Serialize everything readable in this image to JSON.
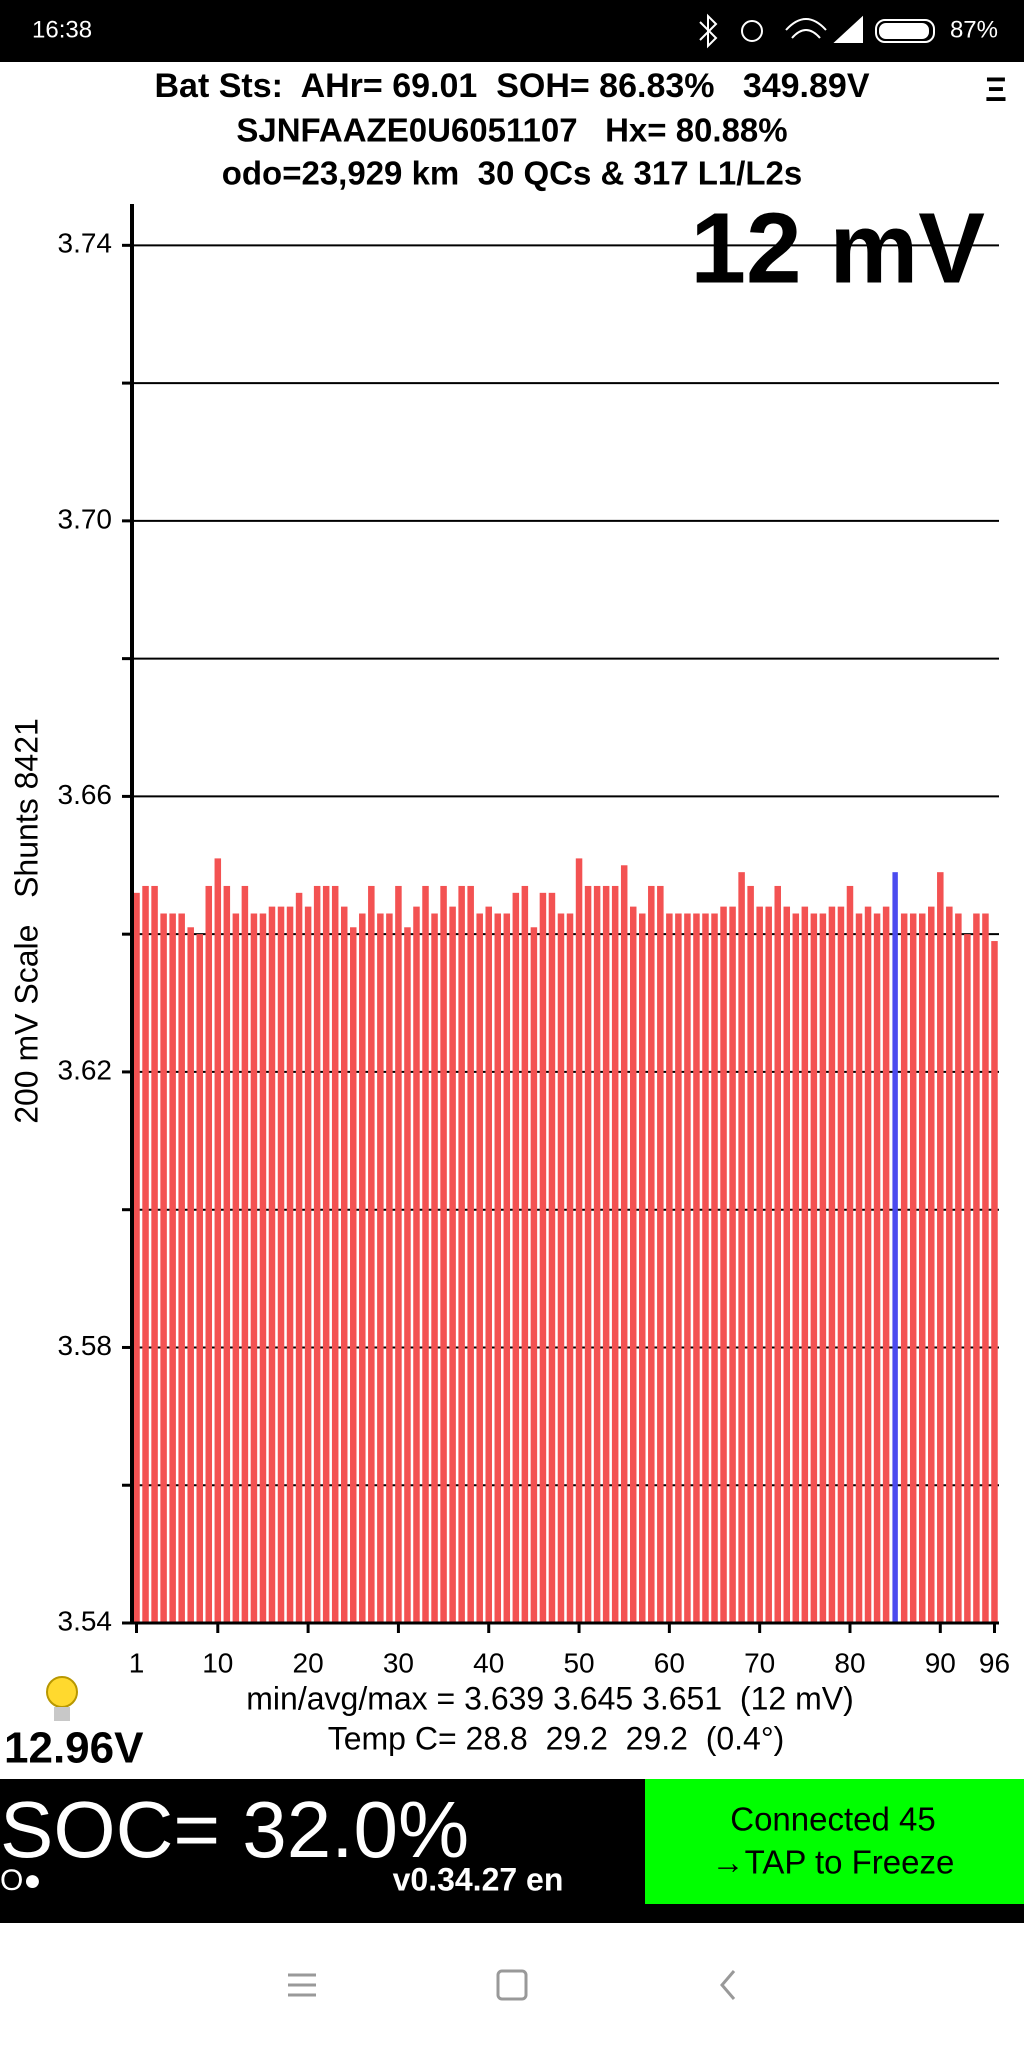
{
  "status_bar": {
    "time": "16:38",
    "battery": "87%"
  },
  "header": {
    "line1": "Bat Sts:  AHr= 69.01  SOH= 86.83%   349.89V",
    "line2": "SJNFAAZE0U6051107   Hx= 80.88%",
    "line3": "odo=23,929 km  30 QCs & 317 L1/L2s",
    "menu": "Ξ"
  },
  "chart_data": {
    "type": "bar",
    "annotation": "12 mV",
    "y_label": "200 mV Scale   Shunts 8421",
    "x": [
      1,
      2,
      3,
      4,
      5,
      6,
      7,
      8,
      9,
      10,
      11,
      12,
      13,
      14,
      15,
      16,
      17,
      18,
      19,
      20,
      21,
      22,
      23,
      24,
      25,
      26,
      27,
      28,
      29,
      30,
      31,
      32,
      33,
      34,
      35,
      36,
      37,
      38,
      39,
      40,
      41,
      42,
      43,
      44,
      45,
      46,
      47,
      48,
      49,
      50,
      51,
      52,
      53,
      54,
      55,
      56,
      57,
      58,
      59,
      60,
      61,
      62,
      63,
      64,
      65,
      66,
      67,
      68,
      69,
      70,
      71,
      72,
      73,
      74,
      75,
      76,
      77,
      78,
      79,
      80,
      81,
      82,
      83,
      84,
      85,
      86,
      87,
      88,
      89,
      90,
      91,
      92,
      93,
      94,
      95,
      96
    ],
    "series": [
      {
        "values": [
          3.646,
          3.647,
          3.647,
          3.643,
          3.643,
          3.643,
          3.641,
          3.64,
          3.647,
          3.651,
          3.647,
          3.643,
          3.647,
          3.643,
          3.643,
          3.644,
          3.644,
          3.644,
          3.646,
          3.644,
          3.647,
          3.647,
          3.647,
          3.644,
          3.641,
          3.643,
          3.647,
          3.643,
          3.643,
          3.647,
          3.641,
          3.644,
          3.647,
          3.643,
          3.647,
          3.644,
          3.647,
          3.647,
          3.643,
          3.644,
          3.643,
          3.643,
          3.646,
          3.647,
          3.641,
          3.646,
          3.646,
          3.643,
          3.643,
          3.651,
          3.647,
          3.647,
          3.647,
          3.647,
          3.65,
          3.644,
          3.643,
          3.647,
          3.647,
          3.643,
          3.643,
          3.643,
          3.643,
          3.643,
          3.643,
          3.644,
          3.644,
          3.649,
          3.647,
          3.644,
          3.644,
          3.647,
          3.644,
          3.643,
          3.644,
          3.643,
          3.643,
          3.644,
          3.644,
          3.647,
          3.643,
          3.644,
          3.643,
          3.644,
          3.649,
          3.643,
          3.643,
          3.643,
          3.644,
          3.649,
          3.644,
          3.643,
          3.64,
          3.643,
          3.643,
          3.639
        ],
        "colors": [
          "#f35252",
          "#f35252",
          "#f35252",
          "#f35252",
          "#f35252",
          "#f35252",
          "#f35252",
          "#f35252",
          "#f35252",
          "#f35252",
          "#f35252",
          "#f35252",
          "#f35252",
          "#f35252",
          "#f35252",
          "#f35252",
          "#f35252",
          "#f35252",
          "#f35252",
          "#f35252",
          "#f35252",
          "#f35252",
          "#f35252",
          "#f35252",
          "#f35252",
          "#f35252",
          "#f35252",
          "#f35252",
          "#f35252",
          "#f35252",
          "#f35252",
          "#f35252",
          "#f35252",
          "#f35252",
          "#f35252",
          "#f35252",
          "#f35252",
          "#f35252",
          "#f35252",
          "#f35252",
          "#f35252",
          "#f35252",
          "#f35252",
          "#f35252",
          "#f35252",
          "#f35252",
          "#f35252",
          "#f35252",
          "#f35252",
          "#f35252",
          "#f35252",
          "#f35252",
          "#f35252",
          "#f35252",
          "#f35252",
          "#f35252",
          "#f35252",
          "#f35252",
          "#f35252",
          "#f35252",
          "#f35252",
          "#f35252",
          "#f35252",
          "#f35252",
          "#f35252",
          "#f35252",
          "#f35252",
          "#f35252",
          "#f35252",
          "#f35252",
          "#f35252",
          "#f35252",
          "#f35252",
          "#f35252",
          "#f35252",
          "#f35252",
          "#f35252",
          "#f35252",
          "#f35252",
          "#f35252",
          "#f35252",
          "#f35252",
          "#f35252",
          "#f35252",
          "#4b4bef",
          "#f35252",
          "#f35252",
          "#f35252",
          "#f35252",
          "#f35252",
          "#f35252",
          "#f35252",
          "#f35252",
          "#f35252",
          "#f35252",
          "#f35252"
        ]
      }
    ],
    "xlim": [
      0.5,
      96.5
    ],
    "xticks": [
      1,
      10,
      20,
      30,
      40,
      50,
      60,
      70,
      80,
      90,
      96
    ],
    "ylim": [
      3.54,
      3.746
    ],
    "yticks": [
      3.54,
      3.58,
      3.62,
      3.66,
      {
        "value": 3.7,
        "label": "3.70"
      },
      3.74
    ],
    "minor_yticks": [
      3.56,
      3.6,
      3.64,
      3.68,
      3.72
    ],
    "grid": true
  },
  "footer": {
    "stats": "min/avg/max = 3.639 3.645 3.651  (12 mV)",
    "temp": "Temp C= 28.8  29.2  29.2  (0.4°)",
    "aux_voltage": "12.96V",
    "soc": "SOC= 32.0%",
    "indicator": "O●",
    "version": "v0.34.27 en",
    "connected": "Connected 45",
    "tap": "→TAP to Freeze"
  }
}
